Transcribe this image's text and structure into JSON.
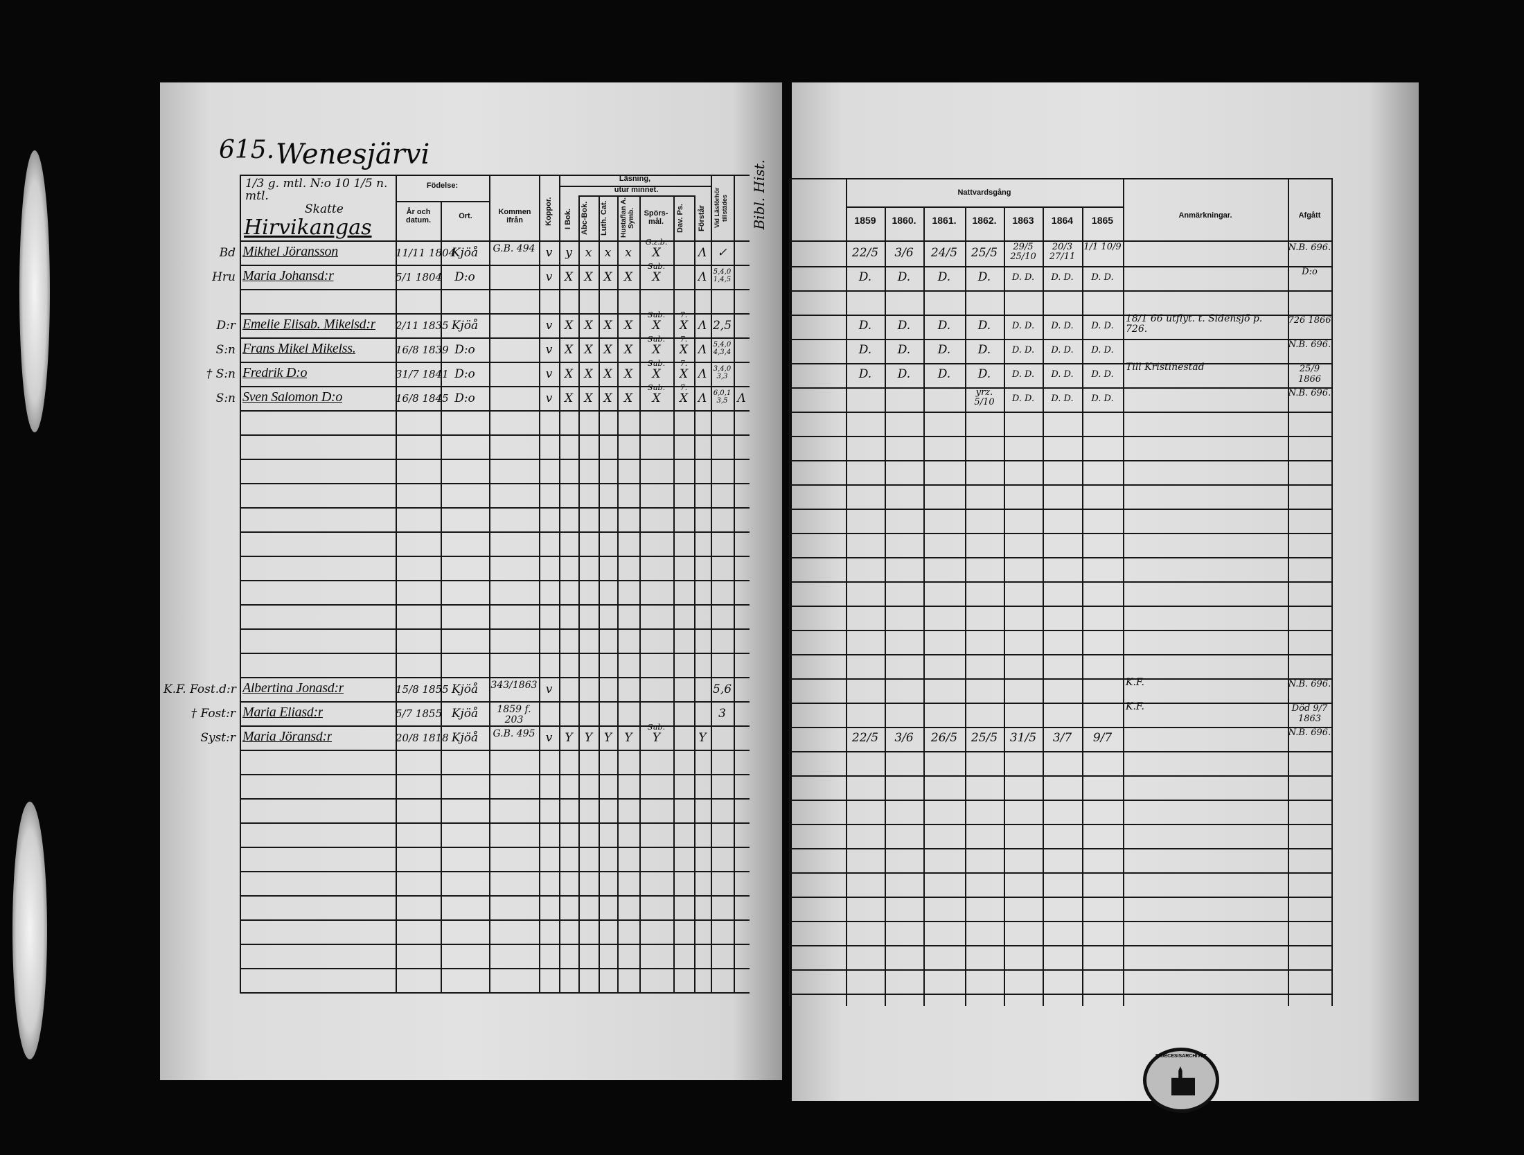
{
  "left_page": {
    "page_number": "615.",
    "village": "Wenesjärvi",
    "holding": "1/3 g. mtl. N:o 10 1/5 n. mtl.",
    "tax_status": "Skatte",
    "farm": "Hirvikangas",
    "corner_note": "Bibl. Hist.",
    "headers": {
      "birth": "Födelse:",
      "year_date": "År och datum.",
      "place": "Ort.",
      "from": "Kommen ifrån",
      "smallpox": "Koppor.",
      "reading": "Läsning,",
      "by_heart": "utur minnet.",
      "in_book": "I Bok.",
      "abc": "Abc-Bok.",
      "catechism": "Luth. Cat.",
      "household": "Hustaflan A. Symb.",
      "questions": "Spörs-mål.",
      "psalms": "Dav. Ps.",
      "understands": "Förstår",
      "exam": "Vid Läsförhör tillstädes"
    }
  },
  "right_page": {
    "headers": {
      "communion": "Nattvardsgång",
      "years": [
        "1859",
        "1860.",
        "1861.",
        "1862.",
        "1863",
        "1864",
        "1865"
      ],
      "remarks": "Anmärkningar.",
      "departed": "Afgått"
    }
  },
  "rows": [
    {
      "role": "Bd",
      "name": "Mikhel Jöransson",
      "birth": "11/11 1804",
      "place": "Kjöå",
      "from": "G.B. 494",
      "marks": [
        "v",
        "y",
        "x",
        "x",
        "x",
        "X",
        "",
        "Λ",
        "✓",
        ""
      ],
      "note": "G.z.b.",
      "years": [
        "22/5",
        "3/6",
        "24/5",
        "25/5",
        "29/5 25/10",
        "20/3 27/11",
        "1/1 10/9"
      ],
      "remarks": "",
      "departed": "N.B. 696."
    },
    {
      "role": "Hru",
      "name": "Maria Johansd:r",
      "birth": "5/1 1804",
      "place": "D:o",
      "from": "",
      "marks": [
        "v",
        "X",
        "X",
        "X",
        "X",
        "X",
        "",
        "Λ",
        "5,4,0 1,4,5",
        ""
      ],
      "note": "Sub.",
      "years": [
        "D.",
        "D.",
        "D.",
        "D.",
        "D. D.",
        "D. D.",
        "D. D."
      ],
      "remarks": "",
      "departed": "D:o"
    },
    {
      "blank": true
    },
    {
      "role": "D:r",
      "name": "Emelie Elisab. Mikelsd:r",
      "birth": "2/11 1835",
      "place": "Kjöå",
      "from": "",
      "marks": [
        "v",
        "X",
        "X",
        "X",
        "X",
        "X",
        "X",
        "Λ",
        "2,5",
        ""
      ],
      "note": "Sub.",
      "note2": "7.",
      "years": [
        "D.",
        "D.",
        "D.",
        "D.",
        "D. D.",
        "D. D.",
        "D. D."
      ],
      "remarks": "18/1 66 utflyt. t. Sidensjö p. 726.",
      "departed": "726 1866"
    },
    {
      "role": "S:n",
      "name": "Frans Mikel Mikelss.",
      "birth": "16/8 1839",
      "place": "D:o",
      "from": "",
      "marks": [
        "v",
        "X",
        "X",
        "X",
        "X",
        "X",
        "X",
        "Λ",
        "5,4,0 4,3,4",
        ""
      ],
      "note": "Sub.",
      "note2": "7.",
      "years": [
        "D.",
        "D.",
        "D.",
        "D.",
        "D. D.",
        "D. D.",
        "D. D."
      ],
      "remarks": "",
      "departed": "N.B. 696."
    },
    {
      "role": "† S:n",
      "name": "Fredrik D:o",
      "birth": "31/7 1841",
      "place": "D:o",
      "from": "",
      "marks": [
        "v",
        "X",
        "X",
        "X",
        "X",
        "X",
        "X",
        "Λ",
        "3,4,0 3,3",
        ""
      ],
      "note": "Sub.",
      "note2": "7.",
      "years": [
        "D.",
        "D.",
        "D.",
        "D.",
        "D. D.",
        "D. D.",
        "D. D."
      ],
      "remarks": "Till Kristinestad",
      "departed": "25/9 1866"
    },
    {
      "role": "S:n",
      "name": "Sven Salomon D:o",
      "birth": "16/8 1845",
      "place": "D:o",
      "from": "",
      "marks": [
        "v",
        "X",
        "X",
        "X",
        "X",
        "X",
        "X",
        "Λ",
        "6,0,1 3,5",
        "Λ"
      ],
      "note": "Sub.",
      "note2": "7.",
      "years": [
        "",
        "",
        "",
        "yrz. 5/10",
        "D. D.",
        "D. D.",
        "D. D."
      ],
      "remarks": "",
      "departed": "N.B. 696."
    },
    {
      "blank": true
    },
    {
      "blank": true
    },
    {
      "blank": true
    },
    {
      "blank": true
    },
    {
      "blank": true
    },
    {
      "blank": true
    },
    {
      "blank": true
    },
    {
      "blank": true
    },
    {
      "blank": true
    },
    {
      "blank": true
    },
    {
      "blank": true
    },
    {
      "role": "K.F. Fost.d:r",
      "name": "Albertina Jonasd:r",
      "birth": "15/8 1855",
      "place": "Kjöå",
      "from": "343/1863",
      "marks": [
        "v",
        "",
        "",
        "",
        "",
        "",
        "",
        "",
        "5,6",
        ""
      ],
      "years": [
        "",
        "",
        "",
        "",
        "",
        "",
        ""
      ],
      "remarks": "K.F.",
      "departed": "N.B. 696."
    },
    {
      "role": "† Fost:r",
      "name": "Maria Eliasd:r",
      "birth": "5/7 1855",
      "place": "Kjöå",
      "from": "1859 f. 203",
      "marks": [
        "",
        "",
        "",
        "",
        "",
        "",
        "",
        "",
        "3",
        ""
      ],
      "years": [
        "",
        "",
        "",
        "",
        "",
        "",
        ""
      ],
      "remarks": "K.F.",
      "departed": "Död 9/7 1863"
    },
    {
      "role": "Syst:r",
      "name": "Maria Jöransd:r",
      "birth": "20/8 1818",
      "place": "Kjöå",
      "from": "G.B. 495",
      "marks": [
        "v",
        "Y",
        "Y",
        "Y",
        "Y",
        "Y",
        "",
        "Y",
        "",
        ""
      ],
      "note": "Sub.",
      "years": [
        "22/5",
        "3/6",
        "26/5",
        "25/5",
        "31/5",
        "3/7",
        "9/7"
      ],
      "remarks": "",
      "departed": "N.B. 696."
    },
    {
      "blank": true
    },
    {
      "blank": true
    },
    {
      "blank": true
    },
    {
      "blank": true
    },
    {
      "blank": true
    },
    {
      "blank": true
    },
    {
      "blank": true
    },
    {
      "blank": true
    },
    {
      "blank": true
    },
    {
      "blank": true
    }
  ],
  "stamp": {
    "text": "DIOECESISARCHIVET"
  }
}
